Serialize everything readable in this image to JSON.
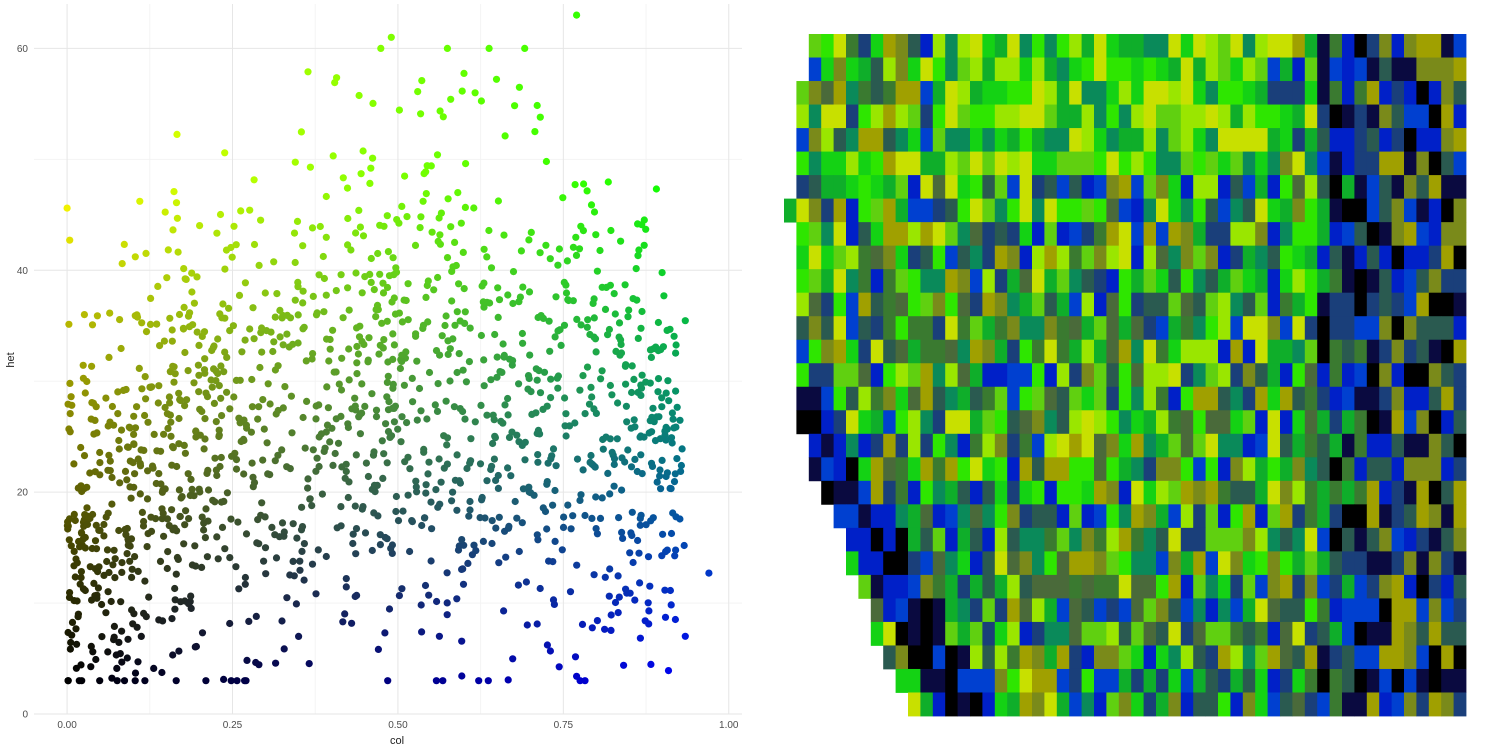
{
  "chart_data": [
    {
      "type": "scatter",
      "xlabel": "col",
      "ylabel": "het",
      "xlim": [
        -0.05,
        1.02
      ],
      "ylim": [
        0,
        64
      ],
      "x_ticks": [
        "0.00",
        "0.25",
        "0.50",
        "0.75",
        "1.00"
      ],
      "x_tick_values": [
        0,
        0.25,
        0.5,
        0.75,
        1.0
      ],
      "y_ticks": [
        "0",
        "20",
        "40",
        "60"
      ],
      "y_tick_values": [
        0,
        20,
        40,
        60
      ],
      "grid": true,
      "point_count": 1500,
      "color_scale": {
        "low_col_low_het": "#000000",
        "high_col_low_het": "#0000ff",
        "low_col_high_het": "#ffff00",
        "high_col_high_het": "#00ff00"
      },
      "x_distribution": "uniform 0.00–0.98 (densest below 0.75)",
      "y_distribution": "3–63, rising with col up to ~0.5",
      "notable_points": [
        {
          "x": 0.77,
          "y": 63
        },
        {
          "x": 0.49,
          "y": 61
        },
        {
          "x": 0.97,
          "y": 12.7
        },
        {
          "x": 0.9,
          "y": 16.2
        },
        {
          "x": 0.77,
          "y": 3.4
        },
        {
          "x": 0.0,
          "y": 45.6
        }
      ]
    },
    {
      "type": "heatmap",
      "grid": false,
      "columns": 55,
      "rows": 29,
      "palette": [
        "#000000",
        "#0a0a40",
        "#0020c8",
        "#0040d0",
        "#1a3f7a",
        "#2a5a50",
        "#3a7a30",
        "#0a8a5a",
        "#0fae2a",
        "#14d214",
        "#2ee600",
        "#60d010",
        "#9ae600",
        "#c8e000",
        "#a0a000",
        "#7a8a1a",
        "#4a6a3a"
      ],
      "description_of_pattern": "left edge jagged (rows start at varying columns), lower-left dark diagonal band, right side darker blues/blacks, upper-middle bright greens/yellows"
    }
  ]
}
